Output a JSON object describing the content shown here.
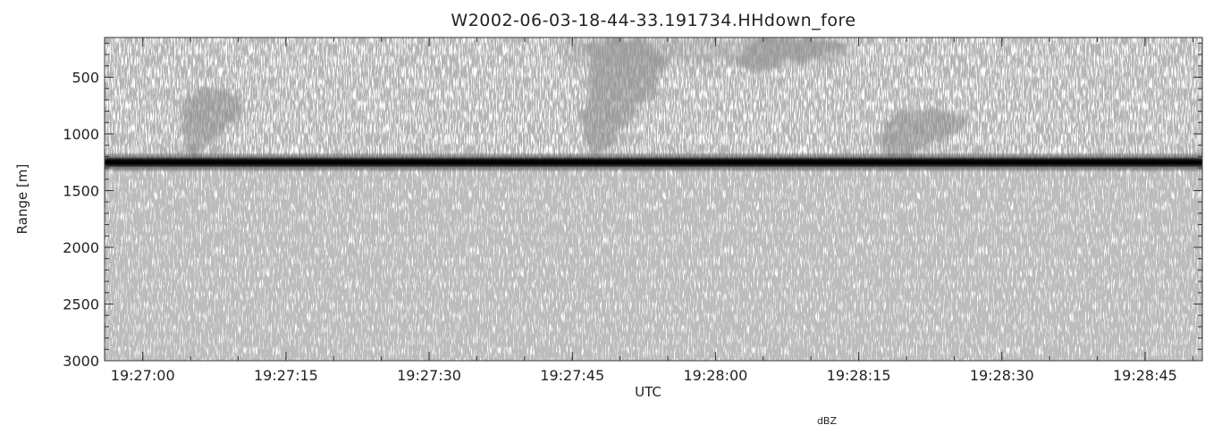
{
  "chart_data": {
    "type": "heatmap",
    "title": "W2002-06-03-18-44-33.191734.HHdown_fore",
    "xlabel": "UTC",
    "ylabel": "Range [m]",
    "footer_fragment": "dBZ",
    "x_unit": "time (UTC)",
    "xlim": [
      "19:26:56",
      "19:28:51"
    ],
    "ylim": [
      3000,
      150
    ],
    "y_inverted": true,
    "x_ticks": [
      "19:27:00",
      "19:27:15",
      "19:27:30",
      "19:27:45",
      "19:28:00",
      "19:28:15",
      "19:28:30",
      "19:28:45"
    ],
    "y_ticks": [
      "500",
      "1000",
      "1500",
      "2000",
      "2500",
      "3000"
    ],
    "colormap": "grayscale (white = low, black = high)",
    "grid": false,
    "features": {
      "surface_return": {
        "range_m": 1250,
        "description": "dark continuous band across the full time span"
      },
      "cloud_echoes": [
        {
          "time_start": "19:27:04",
          "time_end": "19:27:11",
          "range_top_m": 600,
          "range_bottom_m": 1200
        },
        {
          "time_start": "19:27:46",
          "time_end": "19:27:55",
          "range_top_m": 150,
          "range_bottom_m": 1200
        },
        {
          "time_start": "19:28:02",
          "time_end": "19:28:14",
          "range_top_m": 150,
          "range_bottom_m": 450
        },
        {
          "time_start": "19:28:17",
          "time_end": "19:28:27",
          "range_top_m": 800,
          "range_bottom_m": 1200
        }
      ]
    }
  }
}
